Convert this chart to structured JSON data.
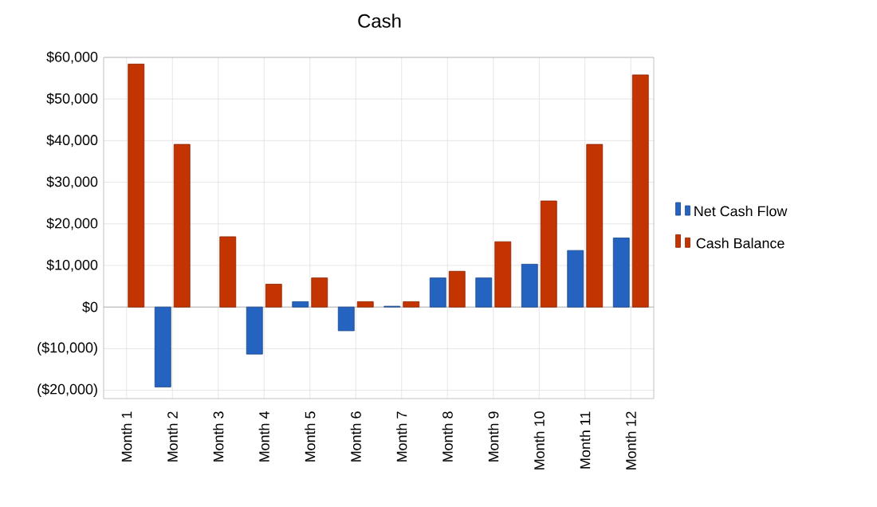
{
  "chart_data": {
    "type": "bar",
    "title": "Cash",
    "categories": [
      "Month 1",
      "Month 2",
      "Month 3",
      "Month 4",
      "Month 5",
      "Month 6",
      "Month 7",
      "Month 8",
      "Month 9",
      "Month 10",
      "Month 11",
      "Month 12"
    ],
    "series": [
      {
        "name": "Net Cash Flow",
        "color": "#2563c0",
        "values": [
          null,
          -19200,
          null,
          -11300,
          1300,
          -5700,
          200,
          7000,
          7000,
          10300,
          13600,
          16600
        ]
      },
      {
        "name": "Cash Balance",
        "color": "#c43400",
        "values": [
          58400,
          39100,
          16900,
          5500,
          7000,
          1300,
          1300,
          8600,
          15700,
          25500,
          39100,
          55800
        ]
      }
    ],
    "ylim": [
      -22000,
      60000
    ],
    "yticks": [
      {
        "value": -20000,
        "label": "($20,000)"
      },
      {
        "value": -10000,
        "label": "($10,000)"
      },
      {
        "value": 0,
        "label": "$0"
      },
      {
        "value": 10000,
        "label": "$10,000"
      },
      {
        "value": 20000,
        "label": "$20,000"
      },
      {
        "value": 30000,
        "label": "$30,000"
      },
      {
        "value": 40000,
        "label": "$40,000"
      },
      {
        "value": 50000,
        "label": "$50,000"
      },
      {
        "value": 60000,
        "label": "$60,000"
      }
    ],
    "grid": true,
    "legend": "right"
  }
}
